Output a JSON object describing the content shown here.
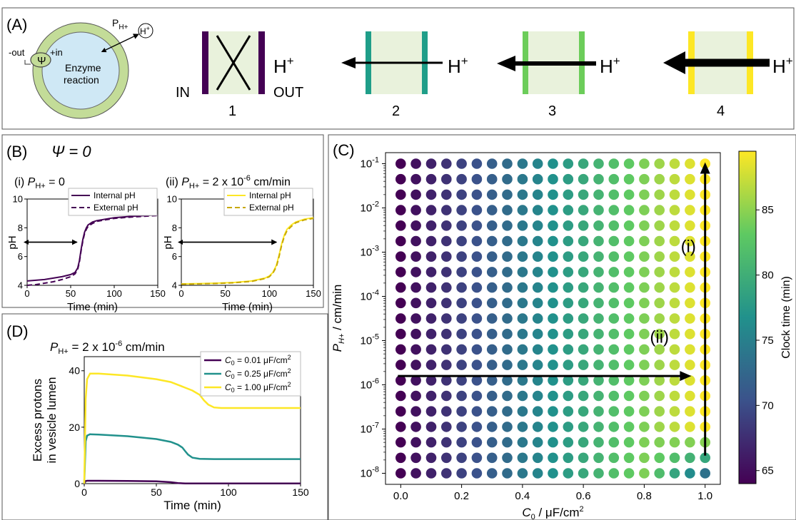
{
  "panel_labels": {
    "a": "(A)",
    "b": "(B)",
    "c": "(C)",
    "d": "(D)"
  },
  "panel_a": {
    "membrane_minus": "-out",
    "membrane_plus": "+in",
    "psi_symbol": "Ψ",
    "permeability": "P",
    "permeability_sub": "H+",
    "proton_circle": "H",
    "proton_circle_sup": "+",
    "enzyme_line1": "Enzyme",
    "enzyme_line2": "reaction",
    "in_label": "IN",
    "out_label": "OUT",
    "proton_label": "H",
    "proton_sup": "+",
    "panels": [
      {
        "number": "1",
        "color": "#440154",
        "arrow": "blocked"
      },
      {
        "number": "2",
        "color": "#1f9e89",
        "arrow": "thin"
      },
      {
        "number": "3",
        "color": "#6ccd5a",
        "arrow": "medium"
      },
      {
        "number": "4",
        "color": "#fde725",
        "arrow": "thick"
      }
    ]
  },
  "panel_b": {
    "title": "Ψ = 0",
    "sub_i": "(i) ",
    "sub_i_p": "P",
    "sub_i_sub": "H+",
    "sub_i_val": " = 0",
    "sub_ii": "(ii) ",
    "sub_ii_p": "P",
    "sub_ii_sub": "H+",
    "sub_ii_val": " = 2 x 10",
    "sub_ii_exp": "-6",
    "sub_ii_unit": " cm/min"
  },
  "panel_d": {
    "title_p": "P",
    "title_sub": "H+",
    "title_val": " = 2 x 10",
    "title_exp": "-6",
    "title_unit": " cm/min"
  },
  "colorbar": {
    "label": "Clock time (min)",
    "min": 64,
    "max": 89.5,
    "ticks": [
      "65",
      "70",
      "75",
      "80",
      "85"
    ],
    "cmap": "viridis"
  },
  "chart_data": [
    {
      "type": "line",
      "panel": "B(i)",
      "xlabel": "Time (min)",
      "ylabel": "pH",
      "xlim": [
        0,
        150
      ],
      "ylim": [
        4,
        10
      ],
      "xticks": [
        0,
        50,
        100,
        150
      ],
      "yticks": [
        4,
        6,
        8,
        10
      ],
      "legend": "top-right",
      "arrow_from_to": [
        0,
        58
      ],
      "arrow_y": 7,
      "series": [
        {
          "name": "Internal pH",
          "color": "#440154",
          "dash": false,
          "x": [
            0,
            10,
            20,
            30,
            40,
            50,
            55,
            58,
            60,
            62,
            64,
            66,
            68,
            70,
            75,
            80,
            90,
            100,
            120,
            150
          ],
          "y": [
            4.3,
            4.35,
            4.4,
            4.5,
            4.6,
            4.75,
            4.9,
            5.2,
            5.7,
            6.5,
            7.2,
            7.7,
            8.0,
            8.2,
            8.4,
            8.5,
            8.6,
            8.7,
            8.8,
            8.9
          ]
        },
        {
          "name": "External pH",
          "color": "#440154",
          "dash": true,
          "x": [
            0,
            10,
            20,
            30,
            40,
            50,
            55,
            58,
            60,
            62,
            64,
            66,
            68,
            70,
            75,
            80,
            90,
            100,
            120,
            150
          ],
          "y": [
            4.0,
            4.05,
            4.15,
            4.25,
            4.4,
            4.6,
            4.8,
            5.1,
            5.6,
            6.4,
            7.1,
            7.6,
            7.9,
            8.1,
            8.3,
            8.45,
            8.55,
            8.65,
            8.75,
            8.85
          ]
        }
      ]
    },
    {
      "type": "line",
      "panel": "B(ii)",
      "xlabel": "Time (min)",
      "ylabel": "pH",
      "xlim": [
        0,
        150
      ],
      "ylim": [
        4,
        10
      ],
      "xticks": [
        0,
        50,
        100,
        150
      ],
      "yticks": [
        4,
        6,
        8,
        10
      ],
      "legend": "top-right",
      "arrow_from_to": [
        0,
        108
      ],
      "arrow_y": 7,
      "series": [
        {
          "name": "Internal pH",
          "color": "#fde725",
          "dash": false,
          "x": [
            0,
            20,
            40,
            60,
            80,
            95,
            100,
            104,
            108,
            111,
            114,
            117,
            120,
            125,
            130,
            140,
            150
          ],
          "y": [
            4.1,
            4.12,
            4.15,
            4.2,
            4.3,
            4.5,
            4.65,
            4.9,
            5.4,
            6.1,
            6.9,
            7.5,
            7.9,
            8.2,
            8.4,
            8.6,
            8.7
          ]
        },
        {
          "name": "External pH",
          "color": "#c8a800",
          "dash": true,
          "x": [
            0,
            20,
            40,
            60,
            80,
            95,
            100,
            104,
            108,
            111,
            114,
            117,
            120,
            125,
            130,
            140,
            150
          ],
          "y": [
            4.08,
            4.1,
            4.13,
            4.18,
            4.28,
            4.47,
            4.6,
            4.85,
            5.3,
            6.0,
            6.8,
            7.4,
            7.8,
            8.1,
            8.35,
            8.55,
            8.65
          ]
        }
      ]
    },
    {
      "type": "line",
      "panel": "D",
      "xlabel": "Time (min)",
      "ylabel_line1": "Excess protons",
      "ylabel_line2": "in vesicle lumen",
      "xlim": [
        0,
        150
      ],
      "ylim": [
        0,
        45
      ],
      "xticks": [
        0,
        50,
        100,
        150
      ],
      "yticks": [
        0,
        20,
        40
      ],
      "legend": "top-right",
      "series": [
        {
          "name_prefix": "C",
          "name_sub": "0",
          "name_rest": " = 0.01 μF/cm",
          "name_sup": "2",
          "color": "#440154",
          "x": [
            0,
            1,
            2,
            4,
            10,
            30,
            50,
            60,
            65,
            70,
            150
          ],
          "y": [
            0,
            0.9,
            1.0,
            1.0,
            1.0,
            0.95,
            0.8,
            0.5,
            0.2,
            0.05,
            0.05
          ]
        },
        {
          "name_prefix": "C",
          "name_sub": "0",
          "name_rest": " = 0.25 μF/cm",
          "name_sup": "2",
          "color": "#21918c",
          "x": [
            0,
            1,
            2,
            4,
            10,
            30,
            50,
            60,
            65,
            68,
            70,
            72,
            75,
            80,
            90,
            100,
            150
          ],
          "y": [
            0,
            15,
            17,
            17.5,
            17.4,
            16.8,
            15.8,
            14.8,
            13.8,
            12.8,
            11.5,
            10.3,
            9.2,
            8.8,
            8.7,
            8.7,
            8.7
          ]
        },
        {
          "name_prefix": "C",
          "name_sub": "0",
          "name_rest": " = 1.00 μF/cm",
          "name_sup": "2",
          "color": "#fde725",
          "x": [
            0,
            1,
            2,
            4,
            10,
            30,
            50,
            60,
            70,
            75,
            80,
            83,
            86,
            90,
            95,
            100,
            150
          ],
          "y": [
            0,
            30,
            37,
            39,
            39,
            38.3,
            37,
            36,
            34,
            33,
            31.5,
            29.5,
            28,
            27,
            26.8,
            26.8,
            26.8
          ]
        }
      ]
    },
    {
      "type": "scatter",
      "panel": "C",
      "xlabel": "C₀ / μF/cm²",
      "ylabel": "P_H+ / cm/min",
      "x_values": [
        0.0,
        0.05,
        0.1,
        0.15,
        0.2,
        0.25,
        0.3,
        0.35,
        0.4,
        0.45,
        0.5,
        0.55,
        0.6,
        0.65,
        0.7,
        0.75,
        0.8,
        0.85,
        0.9,
        0.95,
        1.0
      ],
      "y_log_exponents": [
        -8,
        -7.65,
        -7.3,
        -6.95,
        -6.6,
        -6.25,
        -5.9,
        -5.55,
        -5.2,
        -4.85,
        -4.5,
        -4.15,
        -3.8,
        -3.45,
        -3.1,
        -2.75,
        -2.4,
        -2.05,
        -1.7,
        -1.35,
        -1.0
      ],
      "xlim": [
        -0.05,
        1.05
      ],
      "xticks": [
        "0.0",
        "0.2",
        "0.4",
        "0.6",
        "0.8",
        "1.0"
      ],
      "ytick_base": "10",
      "yticks": [
        "-8",
        "-7",
        "-6",
        "-5",
        "-4",
        "-3",
        "-2",
        "-1"
      ],
      "color_rule": "clock time rises from 64 min at C0=0 to about 89 min at C0=1; for C0>0.8 at P below 1e-7 the clock time drops back toward ~72 min",
      "arrows": [
        {
          "label": "(i)",
          "from": [
            1.0,
            -7.6
          ],
          "to": [
            1.0,
            -1.0
          ]
        },
        {
          "label": "(ii)",
          "from": [
            0.0,
            -5.8
          ],
          "to": [
            0.95,
            -5.8
          ]
        }
      ]
    }
  ]
}
